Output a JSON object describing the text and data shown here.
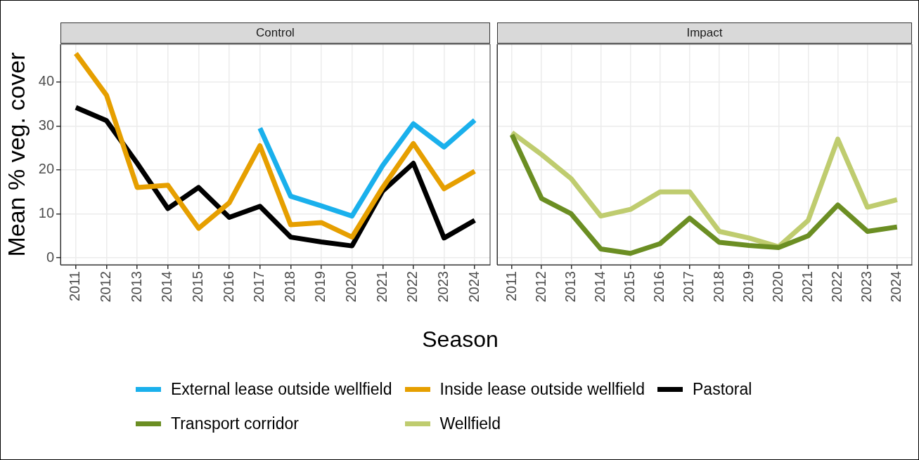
{
  "chart_data": [
    {
      "type": "line",
      "title": "Control",
      "xlabel": "Season",
      "ylabel": "Mean % veg. cover",
      "categories": [
        "2011",
        "2012",
        "2013",
        "2014",
        "2015",
        "2016",
        "2017",
        "2018",
        "2019",
        "2020",
        "2021",
        "2022",
        "2023",
        "2024"
      ],
      "series": [
        {
          "name": "External lease outside wellfield",
          "color": "#1ab0ec",
          "values": [
            null,
            null,
            null,
            null,
            null,
            null,
            29.5,
            14,
            11.8,
            9.5,
            21,
            30.5,
            25.2,
            31.3
          ]
        },
        {
          "name": "Inside lease outside wellfield",
          "color": "#e69f00",
          "values": [
            46.5,
            37,
            16,
            16.5,
            6.7,
            12.5,
            25.5,
            7.5,
            8,
            4.7,
            16,
            26,
            15.7,
            19.7
          ]
        },
        {
          "name": "Pastoral",
          "color": "#000000",
          "values": [
            34.2,
            31.2,
            21.5,
            11.2,
            16,
            9.2,
            11.7,
            4.7,
            3.6,
            2.7,
            15.2,
            21.5,
            4.5,
            8.5
          ]
        }
      ],
      "ylim": [
        -1.6,
        48.6
      ],
      "yticks": [
        0,
        10,
        20,
        30,
        40
      ],
      "grid": true,
      "legend": "bottom"
    },
    {
      "type": "line",
      "title": "Impact",
      "categories": [
        "2011",
        "2012",
        "2013",
        "2014",
        "2015",
        "2016",
        "2017",
        "2018",
        "2019",
        "2020",
        "2021",
        "2022",
        "2023",
        "2024"
      ],
      "series": [
        {
          "name": "Transport corridor",
          "color": "#6b8e23",
          "values": [
            28,
            13.5,
            10,
            2,
            1,
            3.2,
            9,
            3.5,
            2.8,
            2.3,
            5,
            12,
            6,
            7
          ]
        },
        {
          "name": "Wellfield",
          "color": "#bfcc6f",
          "values": [
            28.5,
            23.5,
            18,
            9.5,
            11,
            15,
            15,
            6,
            4.5,
            2.5,
            8.5,
            27,
            11.5,
            13.2
          ]
        }
      ],
      "ylim": [
        -1.6,
        48.6
      ],
      "yticks": [
        0,
        10,
        20,
        30,
        40
      ],
      "grid": true,
      "legend": "bottom",
      "tick_labels": "x"
    }
  ]
}
